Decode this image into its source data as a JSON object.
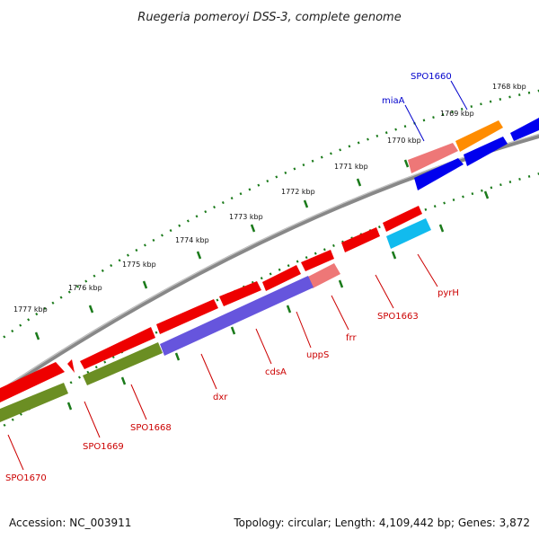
{
  "title": "Ruegeria pomeroyi DSS-3, complete genome",
  "footer": {
    "accession": "Accession: NC_003911",
    "summary": "Topology: circular; Length: 4,109,442 bp; Genes: 3,872"
  },
  "colors": {
    "backbone": "#8a8a8a",
    "tick": "#1a7a1a",
    "label_red": "#cc0000",
    "label_blue": "#0000cc"
  },
  "ticks": [
    {
      "label": "1768 kbp",
      "pos_kbp": 1768
    },
    {
      "label": "1769 kbp",
      "pos_kbp": 1769
    },
    {
      "label": "1770 kbp",
      "pos_kbp": 1770
    },
    {
      "label": "1771 kbp",
      "pos_kbp": 1771
    },
    {
      "label": "1772 kbp",
      "pos_kbp": 1772
    },
    {
      "label": "1773 kbp",
      "pos_kbp": 1773
    },
    {
      "label": "1774 kbp",
      "pos_kbp": 1774
    },
    {
      "label": "1775 kbp",
      "pos_kbp": 1775
    },
    {
      "label": "1776 kbp",
      "pos_kbp": 1776
    },
    {
      "label": "1777 kbp",
      "pos_kbp": 1777
    }
  ],
  "genes": [
    {
      "name": "SPO1660",
      "color": "#ff8c00",
      "track": "outer-cds",
      "label_color": "blue"
    },
    {
      "name": "miaA",
      "color": "#ee7777",
      "track": "outer-cds",
      "label_color": "blue"
    },
    {
      "name": "pyrH",
      "color": "#11bbee",
      "track": "inner-cds",
      "label_color": "red"
    },
    {
      "name": "SPO1663",
      "color": "#ee0000",
      "track": "inner-cds",
      "label_color": "red"
    },
    {
      "name": "frr",
      "color": "#ee7777",
      "track": "inner-cds",
      "label_color": "red"
    },
    {
      "name": "uppS",
      "color": "#ee0000",
      "track": "inner-cds",
      "label_color": "red"
    },
    {
      "name": "cdsA",
      "color": "#ee0000",
      "track": "inner-cds",
      "label_color": "red"
    },
    {
      "name": "dxr",
      "color": "#ee0000",
      "track": "inner-cds",
      "label_color": "red"
    },
    {
      "name": "SPO1668",
      "color": "#ee0000",
      "track": "inner-cds",
      "label_color": "red"
    },
    {
      "name": "SPO1669",
      "color": "#ee0000",
      "track": "inner-cds",
      "label_color": "red"
    },
    {
      "name": "SPO1670",
      "color": "#ee0000",
      "track": "inner-cds",
      "label_color": "red"
    }
  ]
}
